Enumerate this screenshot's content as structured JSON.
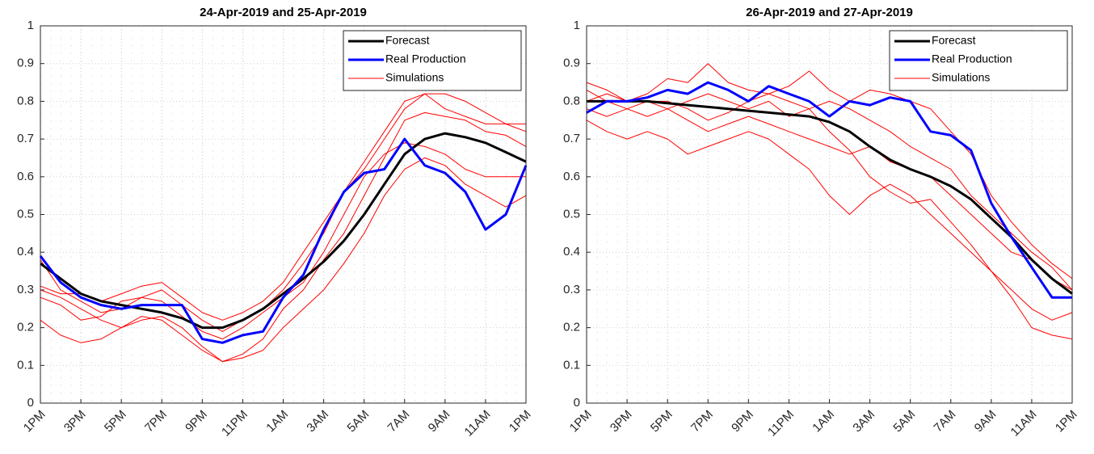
{
  "chart_data": [
    {
      "type": "line",
      "title": "24-Apr-2019 and 25-Apr-2019",
      "categories": [
        "1PM",
        null,
        "3PM",
        null,
        "5PM",
        null,
        "7PM",
        null,
        "9PM",
        null,
        "11PM",
        null,
        "1AM",
        null,
        "3AM",
        null,
        "5AM",
        null,
        "7AM",
        null,
        "9AM",
        null,
        "11AM",
        null,
        "1PM"
      ],
      "series": [
        {
          "name": "Forecast",
          "color": "#000000",
          "linewidth": 3,
          "values": [
            0.37,
            0.33,
            0.29,
            0.27,
            0.26,
            0.25,
            0.24,
            0.225,
            0.2,
            0.2,
            0.22,
            0.25,
            0.29,
            0.33,
            0.375,
            0.43,
            0.5,
            0.58,
            0.66,
            0.7,
            0.715,
            0.705,
            0.69,
            0.665,
            0.64
          ]
        },
        {
          "name": "Real Production",
          "color": "#0000ff",
          "linewidth": 3,
          "values": [
            0.39,
            0.32,
            0.28,
            0.26,
            0.25,
            0.26,
            0.26,
            0.26,
            0.17,
            0.16,
            0.18,
            0.19,
            0.28,
            0.34,
            0.46,
            0.56,
            0.61,
            0.62,
            0.7,
            0.63,
            0.61,
            0.56,
            0.46,
            0.5,
            0.63
          ]
        },
        {
          "name": "Simulations",
          "color": "#ff0000",
          "linewidth": 1,
          "runs": [
            [
              0.38,
              0.3,
              0.27,
              0.24,
              0.25,
              0.28,
              0.3,
              0.26,
              0.22,
              0.19,
              0.22,
              0.25,
              0.3,
              0.37,
              0.45,
              0.56,
              0.64,
              0.72,
              0.8,
              0.82,
              0.78,
              0.76,
              0.74,
              0.74,
              0.74
            ],
            [
              0.3,
              0.28,
              0.25,
              0.22,
              0.2,
              0.22,
              0.23,
              0.2,
              0.15,
              0.11,
              0.13,
              0.17,
              0.25,
              0.3,
              0.38,
              0.45,
              0.55,
              0.65,
              0.75,
              0.77,
              0.76,
              0.75,
              0.72,
              0.71,
              0.68
            ],
            [
              0.22,
              0.18,
              0.16,
              0.17,
              0.2,
              0.23,
              0.22,
              0.18,
              0.14,
              0.11,
              0.12,
              0.14,
              0.2,
              0.25,
              0.3,
              0.37,
              0.45,
              0.55,
              0.62,
              0.65,
              0.63,
              0.58,
              0.55,
              0.52,
              0.55
            ],
            [
              0.31,
              0.29,
              0.29,
              0.27,
              0.29,
              0.31,
              0.32,
              0.28,
              0.24,
              0.22,
              0.24,
              0.27,
              0.32,
              0.4,
              0.48,
              0.56,
              0.62,
              0.7,
              0.78,
              0.82,
              0.82,
              0.8,
              0.77,
              0.74,
              0.72
            ],
            [
              0.28,
              0.26,
              0.22,
              0.23,
              0.27,
              0.28,
              0.27,
              0.23,
              0.19,
              0.17,
              0.2,
              0.24,
              0.28,
              0.32,
              0.4,
              0.5,
              0.6,
              0.66,
              0.69,
              0.68,
              0.66,
              0.62,
              0.6,
              0.6,
              0.6
            ]
          ]
        }
      ],
      "ylim": [
        0,
        1
      ],
      "yticks": [
        0,
        0.1,
        0.2,
        0.3,
        0.4,
        0.5,
        0.6,
        0.7,
        0.8,
        0.9,
        1
      ],
      "grid": true,
      "legend": "northeast"
    },
    {
      "type": "line",
      "title": "26-Apr-2019 and 27-Apr-2019",
      "categories": [
        "1PM",
        null,
        "3PM",
        null,
        "5PM",
        null,
        "7PM",
        null,
        "9PM",
        null,
        "11PM",
        null,
        "1AM",
        null,
        "3AM",
        null,
        "5AM",
        null,
        "7AM",
        null,
        "9AM",
        null,
        "11AM",
        null,
        "1PM"
      ],
      "series": [
        {
          "name": "Forecast",
          "color": "#000000",
          "linewidth": 3,
          "values": [
            0.8,
            0.8,
            0.8,
            0.8,
            0.795,
            0.79,
            0.785,
            0.78,
            0.775,
            0.77,
            0.765,
            0.76,
            0.745,
            0.72,
            0.68,
            0.645,
            0.62,
            0.6,
            0.575,
            0.54,
            0.49,
            0.44,
            0.38,
            0.33,
            0.29
          ]
        },
        {
          "name": "Real Production",
          "color": "#0000ff",
          "linewidth": 3,
          "values": [
            0.77,
            0.8,
            0.8,
            0.81,
            0.83,
            0.82,
            0.85,
            0.83,
            0.8,
            0.84,
            0.82,
            0.8,
            0.76,
            0.8,
            0.79,
            0.81,
            0.8,
            0.72,
            0.71,
            0.67,
            0.53,
            0.44,
            0.36,
            0.28,
            0.28
          ]
        },
        {
          "name": "Simulations",
          "color": "#ff0000",
          "linewidth": 1,
          "runs": [
            [
              0.85,
              0.83,
              0.8,
              0.82,
              0.86,
              0.85,
              0.9,
              0.85,
              0.83,
              0.82,
              0.84,
              0.88,
              0.83,
              0.8,
              0.83,
              0.82,
              0.8,
              0.78,
              0.72,
              0.66,
              0.55,
              0.48,
              0.42,
              0.37,
              0.33
            ],
            [
              0.78,
              0.76,
              0.78,
              0.8,
              0.8,
              0.78,
              0.75,
              0.77,
              0.8,
              0.82,
              0.8,
              0.78,
              0.72,
              0.67,
              0.6,
              0.56,
              0.53,
              0.54,
              0.48,
              0.42,
              0.35,
              0.28,
              0.2,
              0.18,
              0.17
            ],
            [
              0.75,
              0.72,
              0.7,
              0.72,
              0.7,
              0.66,
              0.68,
              0.7,
              0.72,
              0.7,
              0.66,
              0.62,
              0.55,
              0.5,
              0.55,
              0.58,
              0.55,
              0.5,
              0.45,
              0.4,
              0.35,
              0.3,
              0.25,
              0.22,
              0.24
            ],
            [
              0.8,
              0.82,
              0.8,
              0.8,
              0.78,
              0.8,
              0.82,
              0.8,
              0.78,
              0.8,
              0.76,
              0.78,
              0.8,
              0.78,
              0.75,
              0.72,
              0.68,
              0.65,
              0.62,
              0.55,
              0.5,
              0.45,
              0.4,
              0.36,
              0.3
            ],
            [
              0.83,
              0.8,
              0.78,
              0.76,
              0.78,
              0.75,
              0.72,
              0.74,
              0.76,
              0.74,
              0.72,
              0.7,
              0.68,
              0.66,
              0.68,
              0.64,
              0.62,
              0.6,
              0.55,
              0.5,
              0.45,
              0.4,
              0.38,
              0.33,
              0.3
            ]
          ]
        }
      ],
      "ylim": [
        0,
        1
      ],
      "yticks": [
        0,
        0.1,
        0.2,
        0.3,
        0.4,
        0.5,
        0.6,
        0.7,
        0.8,
        0.9,
        1
      ],
      "grid": true,
      "legend": "northeast"
    }
  ]
}
